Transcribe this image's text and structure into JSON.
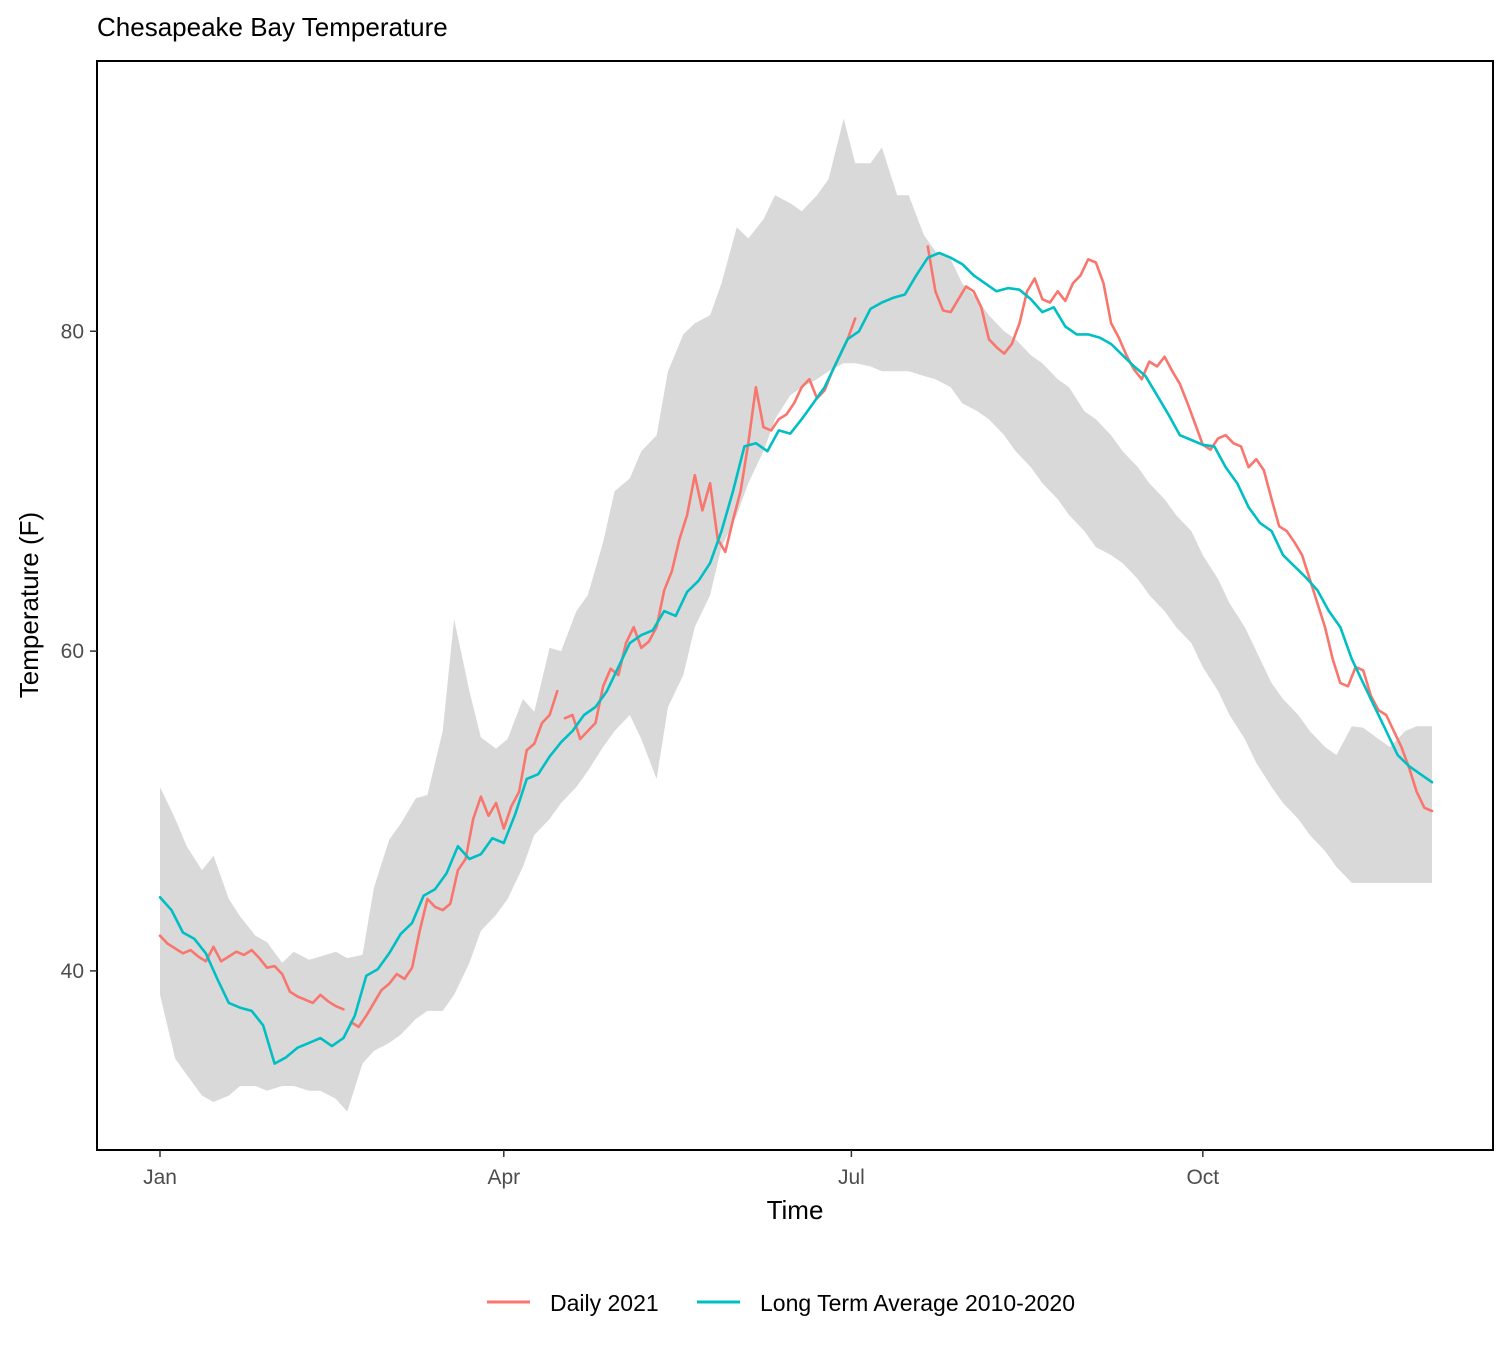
{
  "chart_data": {
    "type": "line",
    "title": "Chesapeake Bay Temperature",
    "xlabel": "Time",
    "ylabel": "Temperature (F)",
    "x_ticks": [
      {
        "label": "Jan",
        "day": 1
      },
      {
        "label": "Apr",
        "day": 91
      },
      {
        "label": "Jul",
        "day": 182
      },
      {
        "label": "Oct",
        "day": 274
      }
    ],
    "y_ticks": [
      40,
      60,
      80
    ],
    "xlim": [
      1,
      334
    ],
    "ylim": [
      28.8,
      96.9
    ],
    "grid": false,
    "legend_position": "bottom",
    "band": {
      "color": "#d9d9d9",
      "x": [
        1,
        5,
        8,
        12,
        15,
        19,
        22,
        26,
        29,
        33,
        36,
        40,
        43,
        47,
        50,
        54,
        57,
        61,
        64,
        68,
        71,
        75,
        78,
        82,
        85,
        89,
        92,
        96,
        99,
        103,
        106,
        110,
        113,
        117,
        120,
        124,
        127,
        131,
        134,
        138,
        141,
        145,
        148,
        152,
        155,
        159,
        162,
        166,
        169,
        173,
        176,
        180,
        183,
        187,
        190,
        194,
        197,
        201,
        204,
        208,
        211,
        215,
        218,
        222,
        225,
        229,
        232,
        236,
        239,
        243,
        246,
        250,
        253,
        257,
        260,
        264,
        267,
        271,
        274,
        278,
        281,
        285,
        288,
        292,
        295,
        299,
        302,
        306,
        309,
        313,
        316,
        320,
        323,
        327,
        330,
        334
      ],
      "upper": [
        51.5,
        49.5,
        47.8,
        46.3,
        47.2,
        44.5,
        43.4,
        42.2,
        41.8,
        40.5,
        41.2,
        40.7,
        40.9,
        41.2,
        40.8,
        41.0,
        45.2,
        48.2,
        49.2,
        50.8,
        51.0,
        55.0,
        62.0,
        57.5,
        54.6,
        53.9,
        54.5,
        57.0,
        56.2,
        60.2,
        60.0,
        62.5,
        63.5,
        66.8,
        70.0,
        70.8,
        72.5,
        73.5,
        77.5,
        79.8,
        80.5,
        81.0,
        83.0,
        86.5,
        85.8,
        87.0,
        88.5,
        88.0,
        87.5,
        88.5,
        89.5,
        93.3,
        90.5,
        90.5,
        91.5,
        88.5,
        88.5,
        86.0,
        85.0,
        84.5,
        83.0,
        82.0,
        81.0,
        80.0,
        79.5,
        78.5,
        78.0,
        77.0,
        76.5,
        75.0,
        74.5,
        73.5,
        72.5,
        71.5,
        70.5,
        69.5,
        68.5,
        67.5,
        66.0,
        64.5,
        63.0,
        61.5,
        60.0,
        58.0,
        57.0,
        56.0,
        55.0,
        54.0,
        53.5,
        55.3,
        55.2,
        54.5,
        54.0,
        55.0,
        55.3,
        55.3
      ],
      "lower": [
        38.5,
        34.5,
        33.5,
        32.2,
        31.8,
        32.2,
        32.8,
        32.8,
        32.5,
        32.8,
        32.8,
        32.5,
        32.5,
        32.0,
        31.2,
        34.2,
        35.0,
        35.5,
        36.0,
        37.0,
        37.5,
        37.5,
        38.5,
        40.5,
        42.5,
        43.5,
        44.5,
        46.5,
        48.5,
        49.5,
        50.5,
        51.5,
        52.5,
        54.0,
        55.0,
        56.0,
        54.5,
        52.0,
        56.5,
        58.5,
        61.5,
        63.5,
        66.5,
        68.5,
        70.5,
        72.5,
        74.5,
        76.0,
        76.5,
        77.0,
        77.5,
        78.0,
        78.0,
        77.8,
        77.5,
        77.5,
        77.5,
        77.2,
        77.0,
        76.5,
        75.5,
        75.0,
        74.5,
        73.5,
        72.5,
        71.5,
        70.5,
        69.5,
        68.5,
        67.5,
        66.5,
        66.0,
        65.5,
        64.5,
        63.5,
        62.5,
        61.5,
        60.5,
        59.0,
        57.5,
        56.0,
        54.5,
        53.0,
        51.5,
        50.5,
        49.5,
        48.5,
        47.5,
        46.5,
        45.5,
        45.5,
        45.5,
        45.5,
        45.5,
        45.5,
        45.5
      ]
    },
    "series": [
      {
        "name": "Daily 2021",
        "color": "#F8766D",
        "segments": [
          {
            "x": [
              1,
              3,
              5,
              7,
              9,
              11,
              13,
              15,
              17,
              19,
              21,
              23,
              25,
              27,
              29,
              31,
              33,
              35,
              37,
              39,
              41,
              43,
              45,
              47,
              49
            ],
            "y": [
              42.2,
              41.7,
              41.4,
              41.1,
              41.3,
              40.9,
              40.6,
              41.5,
              40.6,
              40.9,
              41.2,
              41.0,
              41.3,
              40.8,
              40.2,
              40.3,
              39.8,
              38.7,
              38.4,
              38.2,
              38.0,
              38.5,
              38.1,
              37.8,
              37.6
            ]
          },
          {
            "x": [
              51,
              53,
              55,
              57,
              59,
              61,
              63,
              65,
              67,
              69,
              71,
              73,
              75,
              77,
              79,
              81,
              83,
              85,
              87,
              89,
              91,
              93,
              95,
              97,
              99,
              101,
              103,
              105
            ],
            "y": [
              36.8,
              36.5,
              37.2,
              38.0,
              38.8,
              39.2,
              39.8,
              39.5,
              40.2,
              42.5,
              44.5,
              44.0,
              43.8,
              44.2,
              46.3,
              47.0,
              49.5,
              50.9,
              49.7,
              50.5,
              48.9,
              50.3,
              51.2,
              53.8,
              54.2,
              55.5,
              56.0,
              57.5
            ]
          },
          {
            "x": [
              107,
              109,
              111,
              113,
              115,
              117,
              119,
              121,
              123,
              125,
              127,
              129,
              131,
              133,
              135,
              137,
              139,
              141,
              143,
              145,
              147,
              149,
              151,
              153,
              155,
              157,
              159,
              161,
              163,
              165,
              167,
              169,
              171,
              173,
              175,
              177,
              179,
              181,
              183
            ],
            "y": [
              55.8,
              56.0,
              54.5,
              55.0,
              55.5,
              57.8,
              58.9,
              58.5,
              60.5,
              61.5,
              60.2,
              60.6,
              61.5,
              63.8,
              65.0,
              67.0,
              68.5,
              71.0,
              68.8,
              70.5,
              67.0,
              66.2,
              68.2,
              70.0,
              73.0,
              76.5,
              74.0,
              73.8,
              74.5,
              74.8,
              75.5,
              76.5,
              77.0,
              75.8,
              76.3,
              77.5,
              78.5,
              79.5,
              80.8
            ]
          },
          {
            "x": [
              202,
              204,
              206,
              208,
              210,
              212,
              214,
              216,
              218,
              220,
              222,
              224,
              226,
              228,
              230,
              232,
              234,
              236,
              238,
              240,
              242,
              244,
              246,
              248,
              250,
              252,
              254,
              256,
              258,
              260,
              262,
              264,
              266,
              268,
              270,
              272,
              274,
              276,
              278,
              280,
              282,
              284,
              286,
              288,
              290,
              292,
              294,
              296,
              298,
              300,
              302,
              304,
              306,
              308,
              310,
              312,
              314,
              316,
              318,
              320,
              322,
              324,
              326,
              328,
              330,
              332,
              334
            ],
            "y": [
              85.3,
              82.5,
              81.3,
              81.2,
              82.0,
              82.8,
              82.5,
              81.5,
              79.5,
              79.0,
              78.6,
              79.2,
              80.5,
              82.5,
              83.3,
              82.0,
              81.8,
              82.5,
              81.9,
              83.0,
              83.5,
              84.5,
              84.3,
              83.0,
              80.5,
              79.6,
              78.5,
              77.6,
              77.0,
              78.1,
              77.8,
              78.4,
              77.5,
              76.7,
              75.5,
              74.2,
              72.9,
              72.6,
              73.3,
              73.5,
              73.0,
              72.8,
              71.5,
              72.0,
              71.3,
              69.5,
              67.8,
              67.5,
              66.8,
              66.0,
              64.5,
              63.0,
              61.5,
              59.5,
              58.0,
              57.8,
              59.0,
              58.8,
              57.2,
              56.3,
              56.0,
              55.0,
              54.0,
              52.7,
              51.2,
              50.2,
              50.0
            ]
          }
        ]
      },
      {
        "name": "Long Term Average 2010-2020",
        "color": "#00BFC4",
        "segments": [
          {
            "x": [
              1,
              4,
              7,
              10,
              13,
              16,
              19,
              22,
              25,
              28,
              31,
              34,
              37,
              40,
              43,
              46,
              49,
              52,
              55,
              58,
              61,
              64,
              67,
              70,
              73,
              76,
              79,
              82,
              85,
              88,
              91,
              94,
              97,
              100,
              103,
              106,
              109,
              112,
              115,
              118,
              121,
              124,
              127,
              130,
              133,
              136,
              139,
              142,
              145,
              148,
              151,
              154,
              157,
              160,
              163,
              166,
              169,
              172,
              175,
              178,
              181,
              184,
              187,
              190,
              193,
              196,
              199,
              202,
              205,
              208,
              211,
              214,
              217,
              220,
              223,
              226,
              229,
              232,
              235,
              238,
              241,
              244,
              247,
              250,
              253,
              256,
              259,
              262,
              265,
              268,
              271,
              274,
              277,
              280,
              283,
              286,
              289,
              292,
              295,
              298,
              301,
              304,
              307,
              310,
              313,
              316,
              319,
              322,
              325,
              328,
              331,
              334
            ],
            "y": [
              44.6,
              43.8,
              42.4,
              42.0,
              41.1,
              39.5,
              38.0,
              37.7,
              37.5,
              36.6,
              34.2,
              34.6,
              35.2,
              35.5,
              35.8,
              35.3,
              35.8,
              37.2,
              39.7,
              40.1,
              41.1,
              42.3,
              43.0,
              44.7,
              45.1,
              46.1,
              47.8,
              47.0,
              47.3,
              48.3,
              48.0,
              49.8,
              52.0,
              52.3,
              53.4,
              54.3,
              55.0,
              56.0,
              56.5,
              57.5,
              59.0,
              60.5,
              61.0,
              61.3,
              62.5,
              62.2,
              63.7,
              64.4,
              65.5,
              67.5,
              70.0,
              72.8,
              73.0,
              72.5,
              73.8,
              73.6,
              74.5,
              75.5,
              76.5,
              78.0,
              79.5,
              80.0,
              81.4,
              81.8,
              82.1,
              82.3,
              83.5,
              84.6,
              84.9,
              84.6,
              84.2,
              83.5,
              83.0,
              82.5,
              82.7,
              82.6,
              82.0,
              81.2,
              81.5,
              80.3,
              79.8,
              79.8,
              79.6,
              79.2,
              78.5,
              77.8,
              77.2,
              76.0,
              74.8,
              73.5,
              73.2,
              72.9,
              72.8,
              71.5,
              70.5,
              69.0,
              68.0,
              67.5,
              66.0,
              65.3,
              64.6,
              63.8,
              62.5,
              61.5,
              59.5,
              58.0,
              56.5,
              55.0,
              53.5,
              52.8,
              52.3,
              51.8
            ]
          }
        ]
      }
    ]
  }
}
